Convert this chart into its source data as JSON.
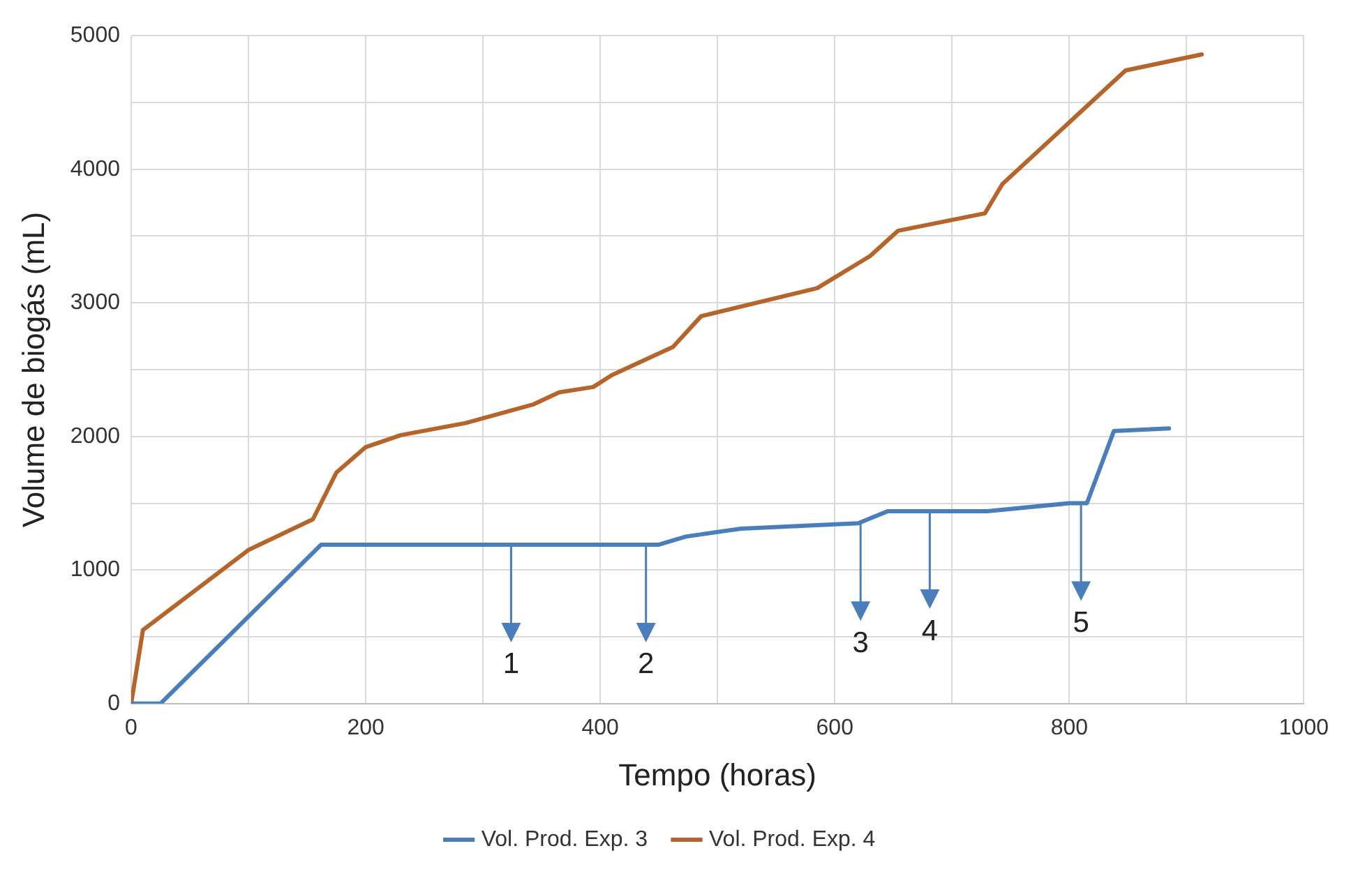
{
  "chart_data": {
    "type": "line",
    "xlabel": "Tempo (horas)",
    "ylabel": "Volume de biogás (mL)",
    "xlim": [
      0,
      1000
    ],
    "xticks": [
      0,
      200,
      400,
      600,
      800,
      1000
    ],
    "ylim": [
      0,
      5000
    ],
    "yticks": [
      0,
      1000,
      2000,
      3000,
      4000,
      5000
    ],
    "grid": true,
    "legend": "bottom",
    "marker": "none",
    "line_style": "solid",
    "series": [
      {
        "name": "Vol. Prod. Exp. 3",
        "color": "#4a7ebb",
        "x": [
          0,
          25,
          162,
          450,
          473,
          520,
          620,
          645,
          730,
          800,
          815,
          838,
          885
        ],
        "values": [
          0,
          0,
          1190,
          1190,
          1250,
          1310,
          1350,
          1440,
          1440,
          1500,
          1500,
          2040,
          2060
        ]
      },
      {
        "name": "Vol. Prod. Exp. 4",
        "color": "#b5652a",
        "x": [
          0,
          10,
          100,
          155,
          175,
          200,
          230,
          285,
          343,
          365,
          394,
          410,
          462,
          486,
          585,
          630,
          654,
          728,
          743,
          848,
          913
        ],
        "values": [
          0,
          550,
          1150,
          1380,
          1730,
          1920,
          2010,
          2100,
          2240,
          2330,
          2370,
          2460,
          2670,
          2900,
          3110,
          3350,
          3540,
          3670,
          3890,
          4740,
          4860
        ]
      }
    ],
    "annotations": [
      {
        "text": "1",
        "x": 324,
        "y": 1190
      },
      {
        "text": "2",
        "x": 439,
        "y": 1190
      },
      {
        "text": "3",
        "x": 622,
        "y": 1350
      },
      {
        "text": "4",
        "x": 681,
        "y": 1440
      },
      {
        "text": "5",
        "x": 810,
        "y": 1500
      }
    ]
  }
}
